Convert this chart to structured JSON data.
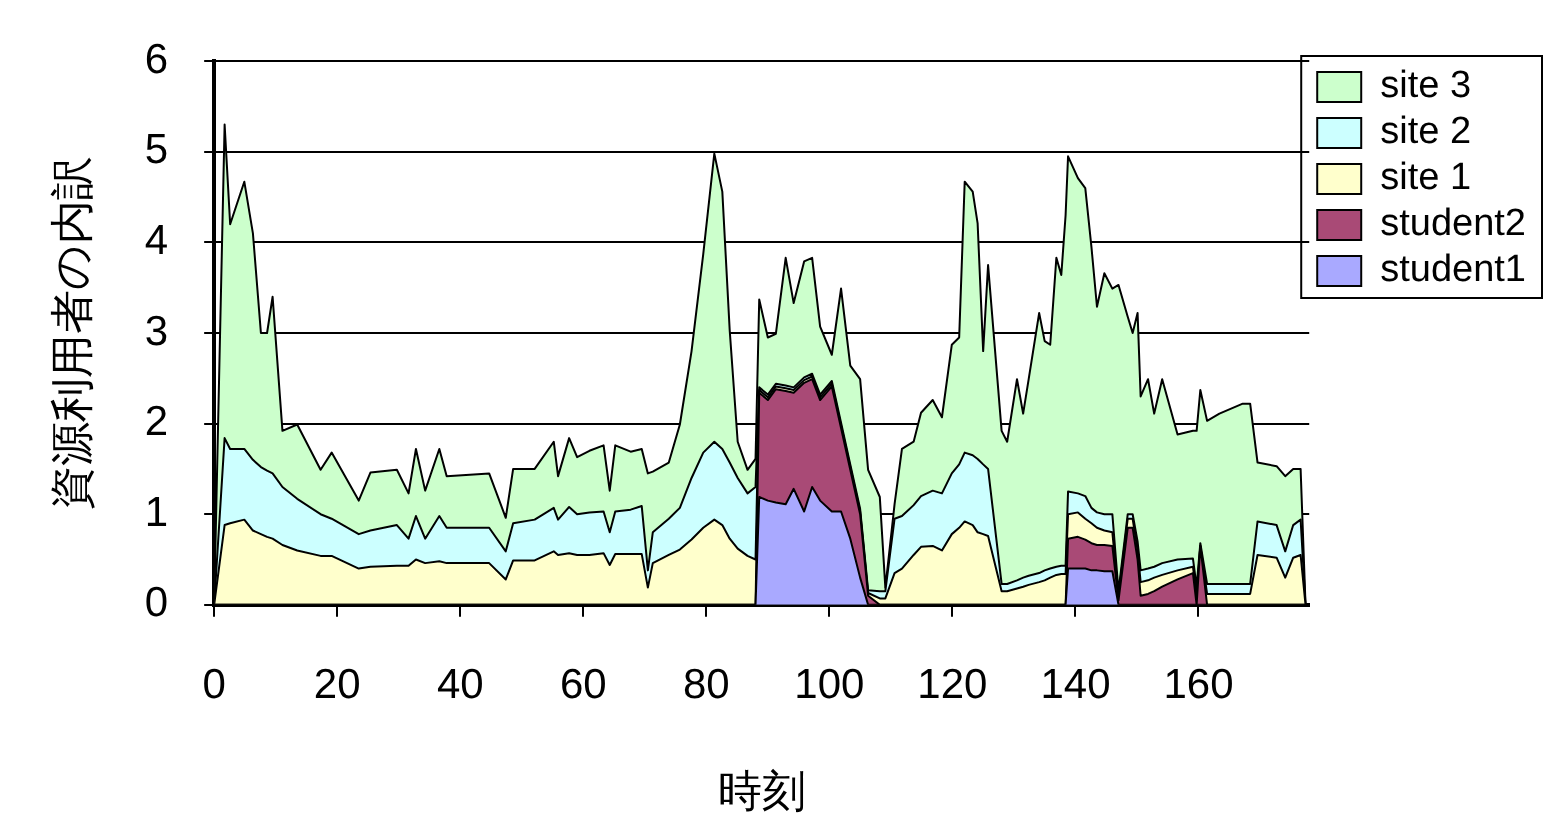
{
  "chart_data": {
    "type": "area",
    "stacked": true,
    "xlabel": "時刻",
    "ylabel": "資源利用者の内訳",
    "xlim": [
      0,
      178
    ],
    "xticks": [
      0,
      20,
      40,
      60,
      80,
      100,
      120,
      140,
      160
    ],
    "ylim": [
      0,
      6
    ],
    "yticks": [
      0,
      1,
      2,
      3,
      4,
      5,
      6
    ],
    "grid": "y",
    "legend": "top right",
    "x": [
      0,
      1.7,
      2.6,
      4.9,
      6.3,
      7.6,
      8.6,
      9.5,
      11.1,
      13.5,
      17.3,
      19.1,
      23.5,
      25.4,
      29.7,
      31.6,
      32.8,
      34.3,
      36.6,
      37.8,
      44.7,
      47.4,
      48.6,
      52.1,
      55.2,
      55.9,
      57.7,
      59,
      61,
      63.3,
      64.3,
      65.2,
      67.7,
      69.5,
      70.5,
      71.3,
      73.9,
      75.7,
      77.6,
      79.5,
      81.3,
      82.6,
      83.8,
      85.1,
      86.7,
      88,
      88.6,
      90,
      91.3,
      92.9,
      94.2,
      95.9,
      97.2,
      98.5,
      100.4,
      101.9,
      103.4,
      105,
      106.3,
      108.2,
      109.1,
      110.6,
      111.8,
      113.7,
      114.9,
      116.8,
      118.3,
      119.9,
      121.1,
      122,
      123.3,
      124.1,
      125,
      125.8,
      128,
      128.9,
      130.5,
      131.5,
      132.4,
      134.1,
      135,
      135.9,
      136.9,
      137.7,
      138.4,
      138.8,
      140.4,
      141.6,
      142.6,
      143.5,
      144.7,
      146,
      147,
      148.5,
      149.3,
      150.1,
      150.6,
      151.8,
      152.8,
      154.1,
      156.6,
      159.1,
      159.7,
      160.3,
      161.4,
      163.4,
      167.2,
      168.4,
      169.6,
      172.7,
      174.1,
      175.4,
      176.6,
      177.4
    ],
    "series": [
      {
        "name": "student1",
        "color": "#a9a9ff",
        "values": [
          0,
          0,
          0,
          0,
          0,
          0,
          0,
          0,
          0,
          0,
          0,
          0,
          0,
          0,
          0,
          0,
          0,
          0,
          0,
          0,
          0,
          0,
          0,
          0,
          0,
          0,
          0,
          0,
          0,
          0,
          0,
          0,
          0,
          0,
          0,
          0,
          0,
          0,
          0,
          0,
          0,
          0,
          0,
          0,
          0,
          0,
          1.19,
          1.15,
          1.13,
          1.11,
          1.28,
          1.03,
          1.3,
          1.15,
          1.03,
          1.03,
          0.73,
          0.3,
          0,
          0,
          0,
          0,
          0,
          0,
          0,
          0,
          0,
          0,
          0,
          0,
          0,
          0,
          0,
          0,
          0,
          0,
          0,
          0,
          0,
          0,
          0,
          0,
          0,
          0,
          0,
          0.4,
          0.4,
          0.4,
          0.38,
          0.38,
          0.37,
          0.37,
          0,
          0,
          0,
          0,
          0,
          0,
          0,
          0,
          0,
          0,
          0,
          0,
          0,
          0,
          0,
          0,
          0,
          0,
          0,
          0,
          0,
          0
        ]
      },
      {
        "name": "student2",
        "color": "#a94a76",
        "values": [
          0,
          0,
          0,
          0,
          0,
          0,
          0,
          0,
          0,
          0,
          0,
          0,
          0,
          0,
          0,
          0,
          0,
          0,
          0,
          0,
          0,
          0,
          0,
          0,
          0,
          0,
          0,
          0,
          0,
          0,
          0,
          0,
          0,
          0,
          0,
          0,
          0,
          0,
          0,
          0,
          0,
          0,
          0,
          0,
          0,
          0,
          1.15,
          1.11,
          1.25,
          1.25,
          1.06,
          1.42,
          1.19,
          1.11,
          1.38,
          0.92,
          0.76,
          0.7,
          0.1,
          0,
          0,
          0,
          0,
          0,
          0,
          0,
          0,
          0,
          0,
          0,
          0,
          0,
          0,
          0,
          0,
          0,
          0,
          0,
          0,
          0,
          0,
          0,
          0,
          0,
          0,
          0.33,
          0.35,
          0.32,
          0.3,
          0.28,
          0.29,
          0.28,
          0.05,
          0.85,
          0.85,
          0.5,
          0.1,
          0.12,
          0.15,
          0.2,
          0.28,
          0.35,
          0,
          0.65,
          0,
          0,
          0,
          0,
          0,
          0,
          0,
          0,
          0,
          0
        ]
      },
      {
        "name": "site 1",
        "color": "#ffffcc",
        "values": [
          0,
          0.88,
          0.9,
          0.94,
          0.82,
          0.78,
          0.75,
          0.73,
          0.66,
          0.6,
          0.54,
          0.54,
          0.4,
          0.42,
          0.43,
          0.43,
          0.5,
          0.46,
          0.48,
          0.46,
          0.46,
          0.28,
          0.49,
          0.49,
          0.59,
          0.55,
          0.57,
          0.55,
          0.55,
          0.57,
          0.44,
          0.56,
          0.56,
          0.56,
          0.19,
          0.46,
          0.55,
          0.61,
          0.72,
          0.85,
          0.94,
          0.88,
          0.73,
          0.62,
          0.54,
          0.5,
          0.03,
          0.03,
          0.03,
          0.03,
          0.03,
          0.03,
          0.03,
          0.03,
          0.03,
          0.03,
          0.03,
          0.03,
          0.03,
          0.07,
          0.07,
          0.35,
          0.4,
          0.55,
          0.64,
          0.65,
          0.6,
          0.78,
          0.85,
          0.92,
          0.88,
          0.8,
          0.78,
          0.76,
          0.15,
          0.15,
          0.18,
          0.2,
          0.22,
          0.25,
          0.27,
          0.3,
          0.33,
          0.34,
          0.34,
          0.27,
          0.27,
          0.23,
          0.22,
          0.19,
          0.16,
          0.15,
          0.05,
          0.1,
          0.1,
          0.1,
          0.15,
          0.15,
          0.15,
          0.13,
          0.1,
          0.07,
          0.1,
          0,
          0.12,
          0.12,
          0.12,
          0.12,
          0.55,
          0.52,
          0.3,
          0.52,
          0.55,
          0
        ]
      },
      {
        "name": "site 2",
        "color": "#ccffff",
        "values": [
          0,
          0.96,
          0.82,
          0.78,
          0.78,
          0.74,
          0.73,
          0.72,
          0.64,
          0.57,
          0.46,
          0.41,
          0.38,
          0.4,
          0.45,
          0.3,
          0.48,
          0.27,
          0.5,
          0.39,
          0.39,
          0.31,
          0.41,
          0.45,
          0.48,
          0.39,
          0.51,
          0.45,
          0.47,
          0.46,
          0.36,
          0.47,
          0.49,
          0.53,
          0.19,
          0.34,
          0.4,
          0.46,
          0.68,
          0.83,
          0.86,
          0.84,
          0.84,
          0.78,
          0.69,
          0.8,
          0.03,
          0.03,
          0.03,
          0.03,
          0.03,
          0.03,
          0.03,
          0.03,
          0.03,
          0.03,
          0.03,
          0.03,
          0.03,
          0.08,
          0.08,
          0.6,
          0.58,
          0.55,
          0.56,
          0.61,
          0.63,
          0.67,
          0.7,
          0.76,
          0.77,
          0.81,
          0.77,
          0.74,
          0.08,
          0.08,
          0.09,
          0.1,
          0.1,
          0.1,
          0.11,
          0.1,
          0.09,
          0.09,
          0.09,
          0.25,
          0.21,
          0.25,
          0.17,
          0.17,
          0.18,
          0.2,
          0.05,
          0.05,
          0.05,
          0.1,
          0.13,
          0.13,
          0.12,
          0.13,
          0.12,
          0.09,
          0.1,
          0.03,
          0.11,
          0.11,
          0.11,
          0.11,
          0.37,
          0.36,
          0.29,
          0.36,
          0.39,
          0
        ]
      },
      {
        "name": "site 3",
        "color": "#ccffcc",
        "values": [
          0,
          3.46,
          2.48,
          2.95,
          2.5,
          1.48,
          1.52,
          1.95,
          0.62,
          0.82,
          0.49,
          0.73,
          0.37,
          0.64,
          0.61,
          0.5,
          0.74,
          0.53,
          0.74,
          0.57,
          0.6,
          0.37,
          0.6,
          0.56,
          0.73,
          0.48,
          0.76,
          0.63,
          0.68,
          0.73,
          0.46,
          0.73,
          0.64,
          0.63,
          1.07,
          0.67,
          0.62,
          0.92,
          1.4,
          2.19,
          3.18,
          2.84,
          1.46,
          0.4,
          0.26,
          0.31,
          0.97,
          0.63,
          0.55,
          1.41,
          0.93,
          1.28,
          1.28,
          0.75,
          0.29,
          1.48,
          1.09,
          1.43,
          1.33,
          1.04,
          0.04,
          0.16,
          0.74,
          0.7,
          0.92,
          1.0,
          0.84,
          1.42,
          1.4,
          2.99,
          2.91,
          2.6,
          1.25,
          2.25,
          1.69,
          1.57,
          2.22,
          1.81,
          2.17,
          2.87,
          2.53,
          2.47,
          3.41,
          3.21,
          3.87,
          3.7,
          3.48,
          3.4,
          2.88,
          2.27,
          2.66,
          2.49,
          3.38,
          2.18,
          2.0,
          2.52,
          1.92,
          2.09,
          1.69,
          2.03,
          1.38,
          1.41,
          1.72,
          1.69,
          1.8,
          1.88,
          1.99,
          1.99,
          0.65,
          0.65,
          0.83,
          0.62,
          0.56,
          0
        ]
      }
    ]
  }
}
